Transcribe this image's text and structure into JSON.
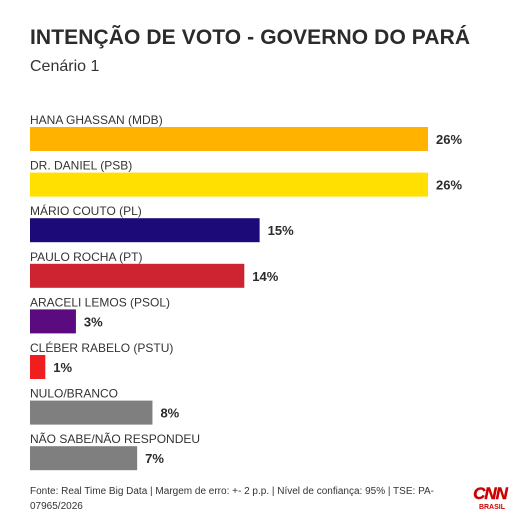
{
  "header": {
    "title": "INTENÇÃO DE VOTO - GOVERNO DO PARÁ",
    "subtitle": "Cenário 1"
  },
  "chart_data": {
    "type": "bar",
    "orientation": "horizontal",
    "title": "INTENÇÃO DE VOTO - GOVERNO DO PARÁ",
    "subtitle": "Cenário 1",
    "categories": [
      "HANA GHASSAN (MDB)",
      "DR. DANIEL (PSB)",
      "MÁRIO COUTO (PL)",
      "PAULO ROCHA (PT)",
      "ARACELI LEMOS (PSOL)",
      "CLÉBER RABELO (PSTU)",
      "NULO/BRANCO",
      "NÃO SABE/NÃO RESPONDEU"
    ],
    "values": [
      26,
      26,
      15,
      14,
      3,
      1,
      8,
      7
    ],
    "value_labels": [
      "26%",
      "26%",
      "15%",
      "14%",
      "3%",
      "1%",
      "8%",
      "7%"
    ],
    "colors": [
      "#FFB300",
      "#FFE000",
      "#1B0A78",
      "#CE2431",
      "#5C0A80",
      "#F01E1E",
      "#7F7F7F",
      "#7F7F7F"
    ],
    "xlim": [
      0,
      26
    ],
    "grid": false,
    "legend": "none"
  },
  "footer": {
    "source": "Fonte: Real Time Big Data | Margem de erro: +- 2 p.p. | Nível de confiança: 95% | TSE: PA-07965/2026"
  },
  "logo": {
    "main": "CNN",
    "sub": "BRASIL",
    "color": "#CC0000"
  }
}
